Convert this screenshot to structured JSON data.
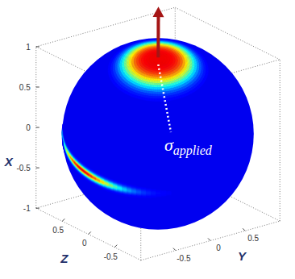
{
  "chart_data": {
    "type": "surface3d",
    "xlabel": "X",
    "ylabel": "Y",
    "zlabel": "Z",
    "xlim": [
      -1,
      1
    ],
    "ylim": [
      -1,
      1
    ],
    "zlim": [
      -1,
      1
    ],
    "xticks": [
      -1,
      -0.5,
      0,
      0.5,
      1
    ],
    "yticks": [
      -0.5,
      0,
      0.5
    ],
    "zticks": [
      -0.5,
      0,
      0.5
    ],
    "radius": 1.1,
    "color_field": {
      "peak": [
        0.96,
        -0.17,
        -0.23
      ],
      "band_peak": [
        -0.15,
        -0.99,
        0.0
      ]
    },
    "annotation": {
      "text": "σ",
      "subscript": "applied"
    },
    "grid": false
  }
}
